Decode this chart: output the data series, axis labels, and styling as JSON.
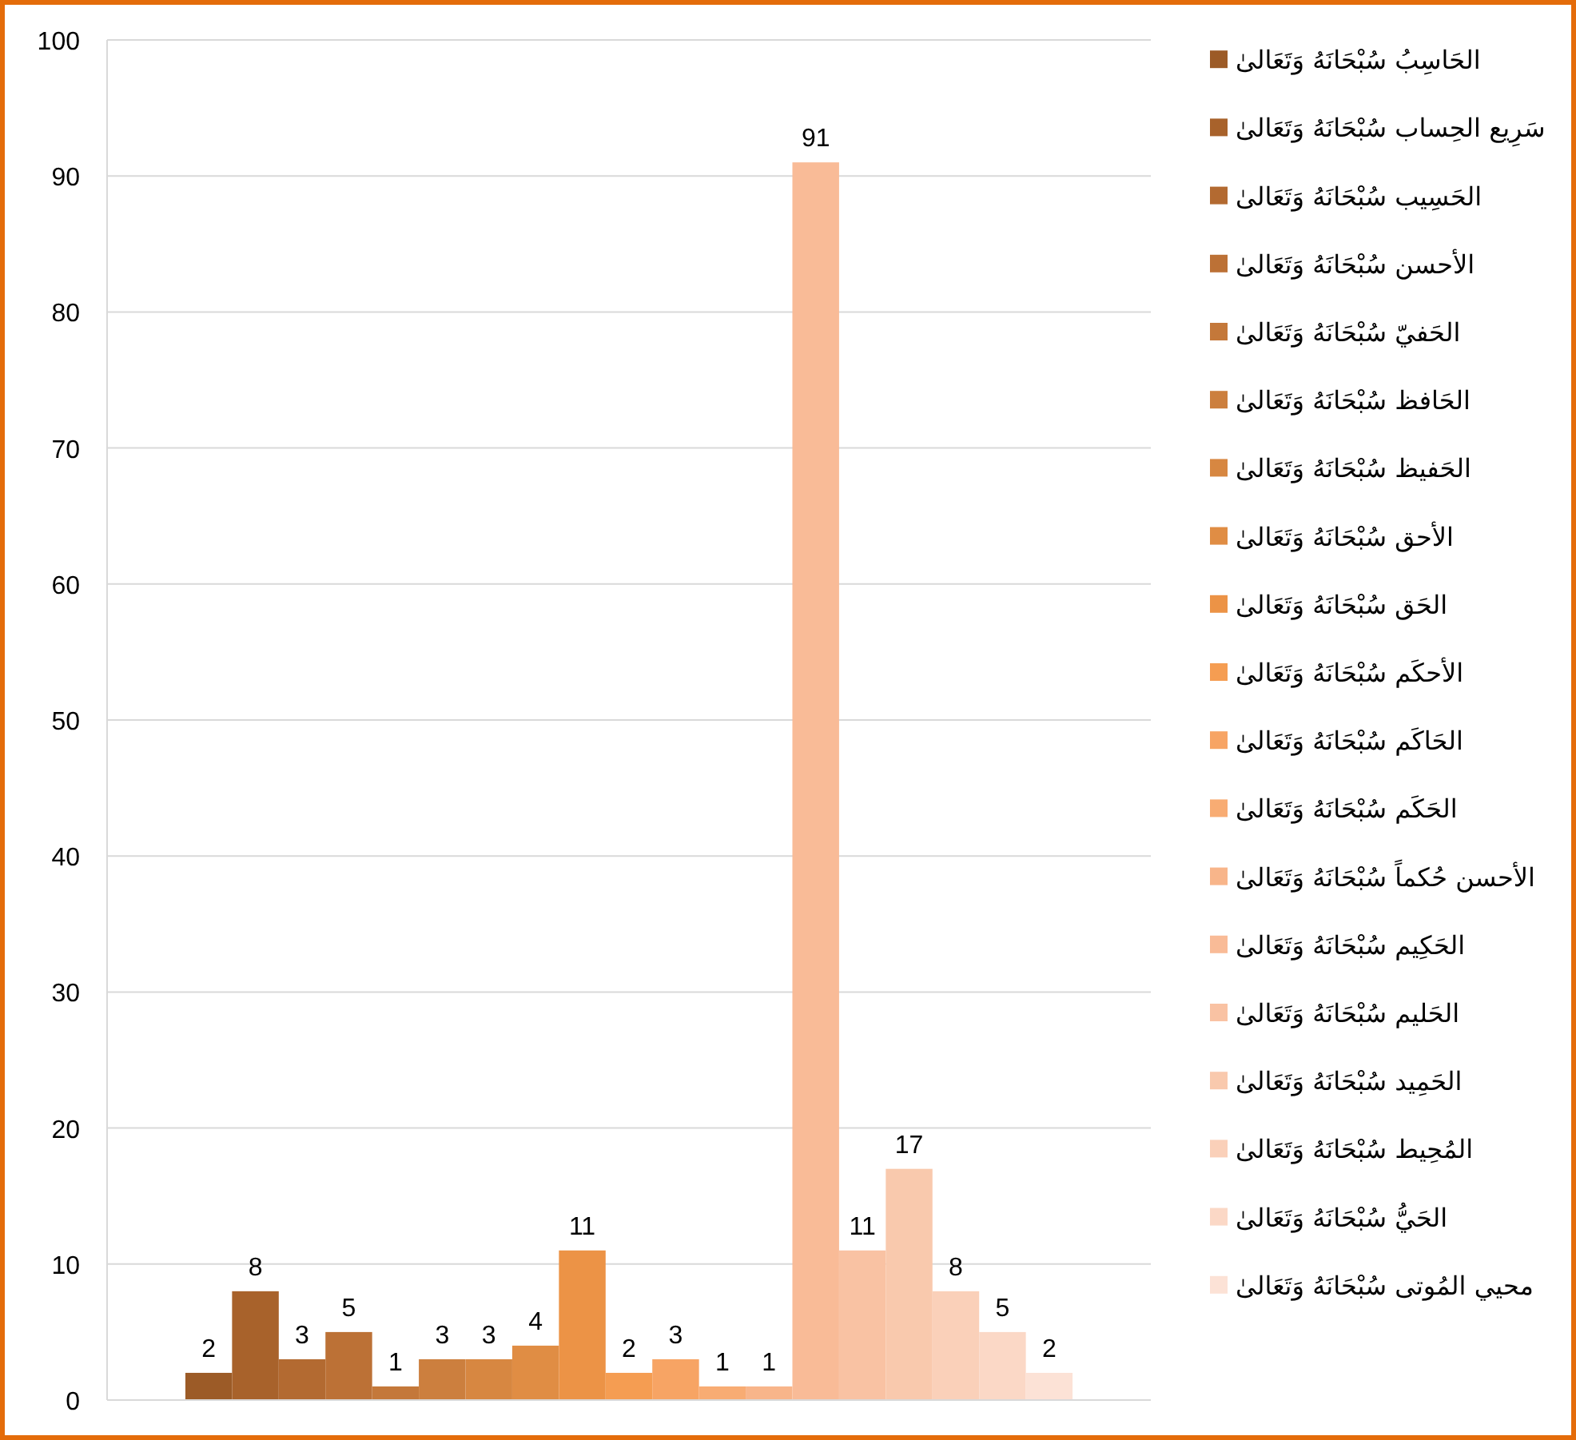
{
  "chart_data": {
    "type": "bar",
    "categories": [
      null
    ],
    "series": [
      {
        "name": "الحَاسِبُ سُبْحَانَهُ وَتَعَالىٰ",
        "color": "#9c5b27",
        "values": [
          2
        ]
      },
      {
        "name": "سَرِيع الحِساب سُبْحَانَهُ وَتَعَالىٰ",
        "color": "#a8622b",
        "values": [
          8
        ]
      },
      {
        "name": "الحَسِيب سُبْحَانَهُ وَتَعَالىٰ",
        "color": "#b36a31",
        "values": [
          3
        ]
      },
      {
        "name": "الأحسن سُبْحَانَهُ وَتَعَالىٰ",
        "color": "#bc7136",
        "values": [
          5
        ]
      },
      {
        "name": "الحَفيّ سُبْحَانَهُ وَتَعَالىٰ",
        "color": "#c4783a",
        "values": [
          1
        ]
      },
      {
        "name": "الحَافظ سُبْحَانَهُ وَتَعَالىٰ",
        "color": "#cc7f3e",
        "values": [
          3
        ]
      },
      {
        "name": "الحَفيظ سُبْحَانَهُ وَتَعَالىٰ",
        "color": "#d78741",
        "values": [
          3
        ]
      },
      {
        "name": "الأحق  سُبْحَانَهُ وَتَعَالىٰ",
        "color": "#e08d44",
        "values": [
          4
        ]
      },
      {
        "name": "الحَق سُبْحَانَهُ وَتَعَالىٰ",
        "color": "#ec9346",
        "values": [
          11
        ]
      },
      {
        "name": "الأحكَم  سُبْحَانَهُ وَتَعَالىٰ",
        "color": "#f59d52",
        "values": [
          2
        ]
      },
      {
        "name": "الحَاكَم  سُبْحَانَهُ وَتَعَالىٰ",
        "color": "#f7a464",
        "values": [
          3
        ]
      },
      {
        "name": "الحَكَم  سُبْحَانَهُ وَتَعَالىٰ",
        "color": "#f8ac73",
        "values": [
          1
        ]
      },
      {
        "name": "الأحسن حُكماً  سُبْحَانَهُ وَتَعَالىٰ",
        "color": "#f8b58a",
        "values": [
          1
        ]
      },
      {
        "name": "الحَكِيم  سُبْحَانَهُ وَتَعَالىٰ",
        "color": "#f9bb97",
        "values": [
          91
        ]
      },
      {
        "name": "الحَليم  سُبْحَانَهُ وَتَعَالىٰ",
        "color": "#f9c2a3",
        "values": [
          11
        ]
      },
      {
        "name": "الحَمِيد  سُبْحَانَهُ وَتَعَالىٰ",
        "color": "#f9c9ad",
        "values": [
          17
        ]
      },
      {
        "name": "المُحِيط  سُبْحَانَهُ وَتَعَالىٰ",
        "color": "#fad0b9",
        "values": [
          8
        ]
      },
      {
        "name": "الحَيُّ سُبْحَانَهُ وَتَعَالىٰ",
        "color": "#fbd8c6",
        "values": [
          5
        ]
      },
      {
        "name": "محيي المُوتى  سُبْحَانَهُ وَتَعَالىٰ",
        "color": "#fce2d6",
        "values": [
          2
        ]
      }
    ],
    "ylim": [
      0,
      100
    ],
    "yticks": [
      0,
      10,
      20,
      30,
      40,
      50,
      60,
      70,
      80,
      90,
      100
    ],
    "grid": "y",
    "legend": "right",
    "data_labels": true
  }
}
